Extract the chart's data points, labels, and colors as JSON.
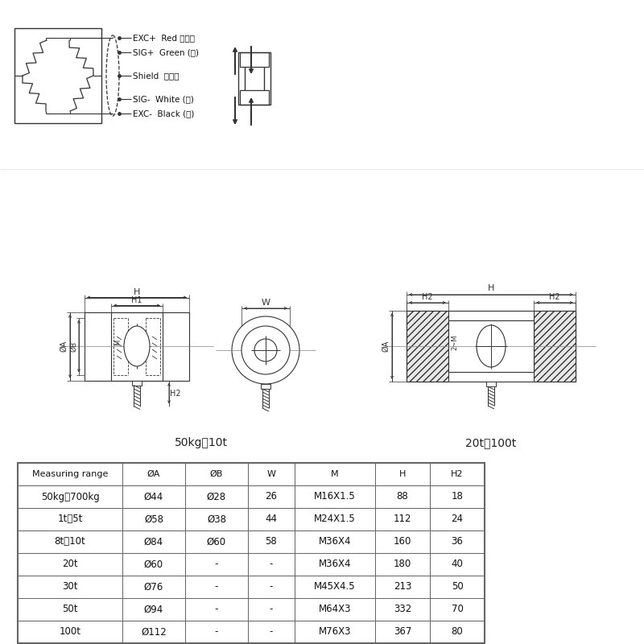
{
  "table_headers": [
    "Measuring range",
    "ØA",
    "ØB",
    "W",
    "M",
    "H",
    "H2"
  ],
  "table_rows": [
    [
      "50kg～700kg",
      "Ø44",
      "Ø28",
      "26",
      "M16X1.5",
      "88",
      "18"
    ],
    [
      "1t～5t",
      "Ø58",
      "Ø38",
      "44",
      "M24X1.5",
      "112",
      "24"
    ],
    [
      "8t～10t",
      "Ø84",
      "Ø60",
      "58",
      "M36X4",
      "160",
      "36"
    ],
    [
      "20t",
      "Ø60",
      "-",
      "-",
      "M36X4",
      "180",
      "40"
    ],
    [
      "30t",
      "Ø76",
      "-",
      "-",
      "M45X4.5",
      "213",
      "50"
    ],
    [
      "50t",
      "Ø94",
      "-",
      "-",
      "M64X3",
      "332",
      "70"
    ],
    [
      "100t",
      "Ø112",
      "-",
      "-",
      "M76X3",
      "367",
      "80"
    ]
  ],
  "wiring_labels": [
    [
      "EXC+",
      "Red",
      "（红）"
    ],
    [
      "SIG+",
      "Green",
      "(绿)"
    ],
    [
      "Shield",
      "屏蔽线",
      ""
    ],
    [
      "SIG-",
      "White",
      "(白)"
    ],
    [
      "EXC-",
      "Black",
      "(黑)"
    ]
  ],
  "label_50kg_10t": "50kg～10t",
  "label_20t_100t": "20t～100t",
  "bg_color": "#ffffff",
  "line_color": "#333333",
  "table_border_color": "#888888"
}
